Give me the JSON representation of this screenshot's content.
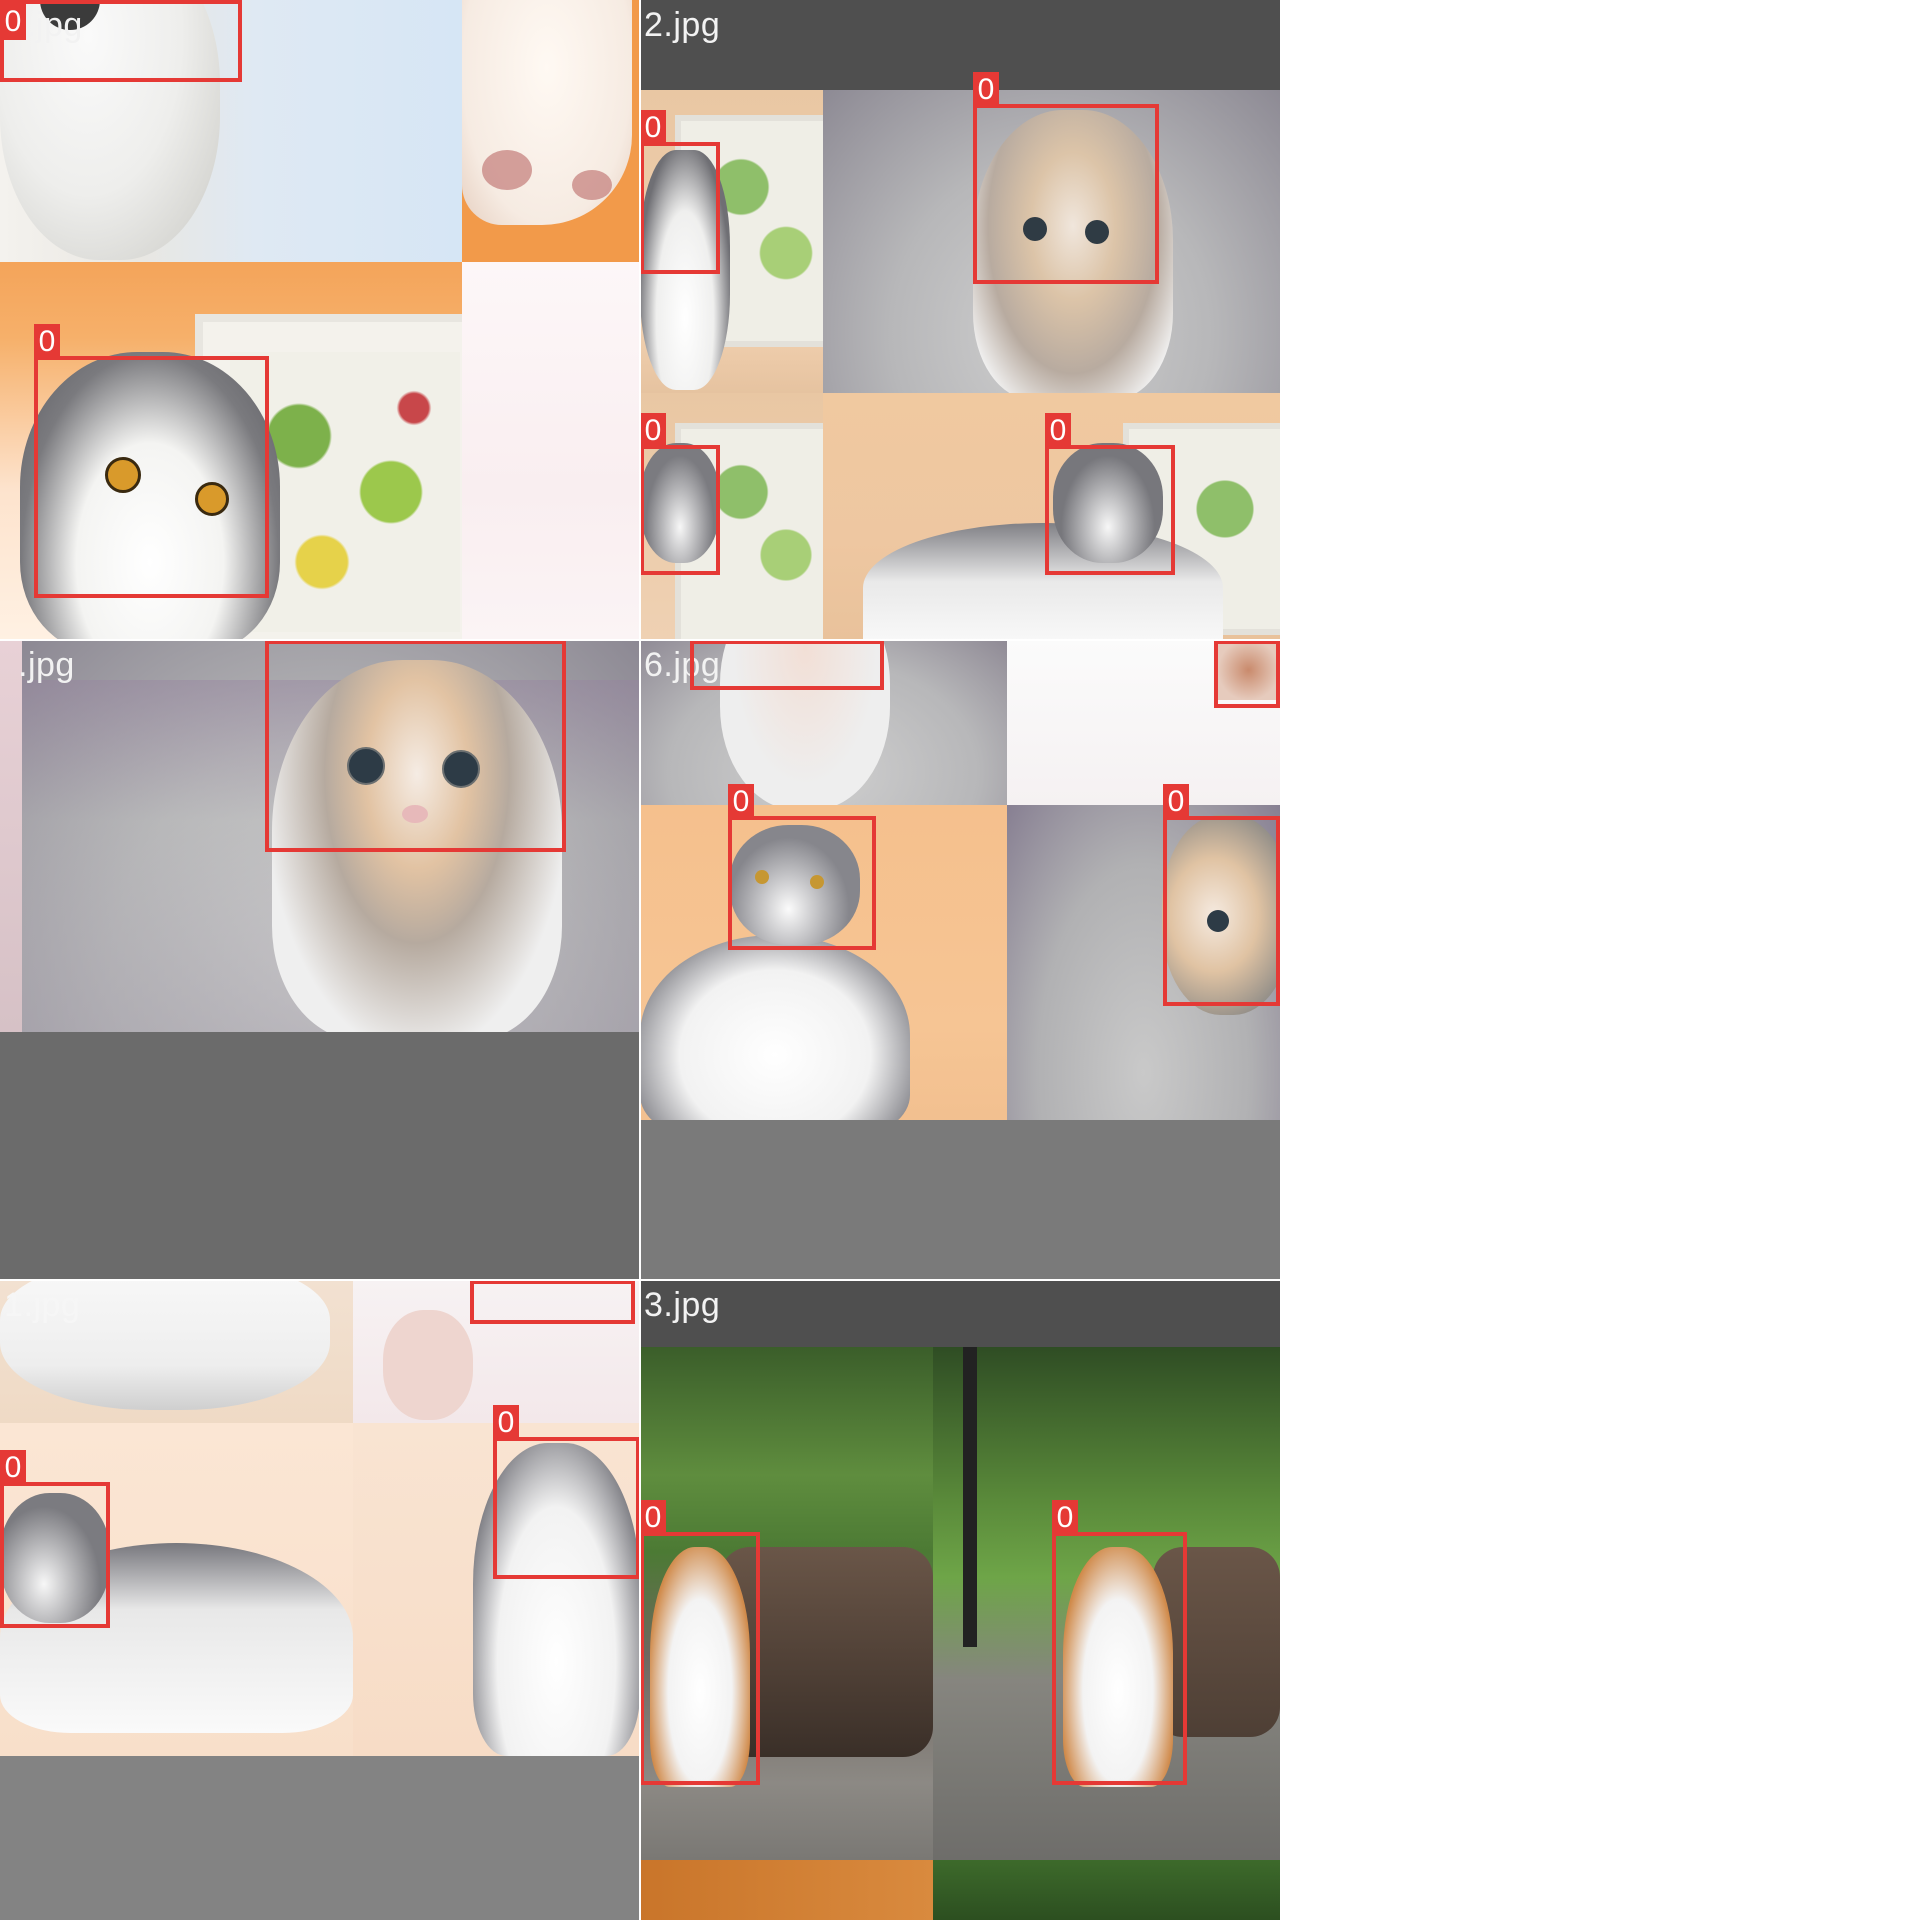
{
  "mosaics": [
    {
      "filename": ".jpg"
    },
    {
      "filename": "2.jpg"
    },
    {
      "filename": ".jpg"
    },
    {
      "filename": "6.jpg"
    },
    {
      "filename": "1.jpg"
    },
    {
      "filename": "3.jpg"
    }
  ],
  "box_class_label": "0",
  "colors": {
    "box": "#e53935",
    "letterbox": "#7a7a7a",
    "divider": "#ffffff"
  }
}
